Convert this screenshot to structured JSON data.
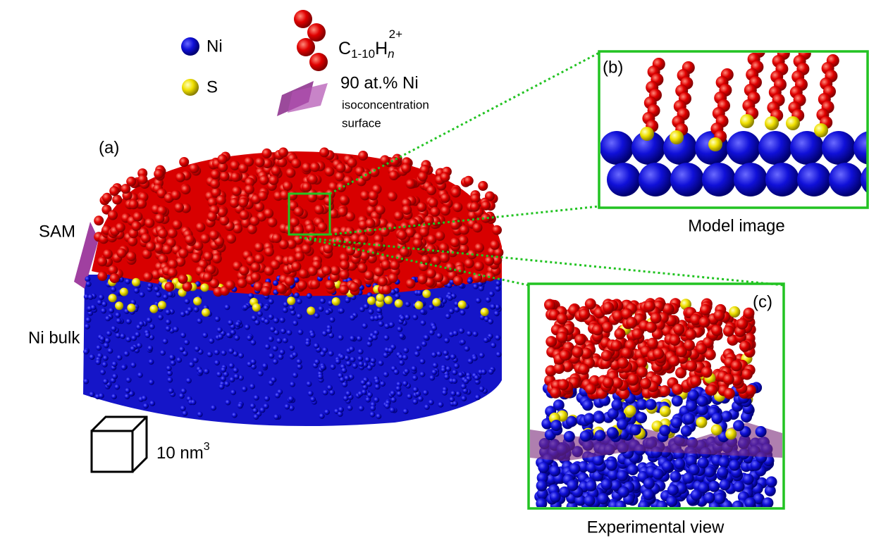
{
  "legend": {
    "ni": "Ni",
    "s": "S",
    "formula": {
      "base": "C",
      "sub": "1-10",
      "mid": "H",
      "sub2": "n",
      "sup": "2+"
    },
    "iso": {
      "title": "90 at.% Ni",
      "line1": "isoconcentration",
      "line2": "surface"
    }
  },
  "panel_a": {
    "label": "(a)",
    "sam": "SAM",
    "bulk": "Ni bulk",
    "scale": {
      "text": "10 nm",
      "sup": "3"
    }
  },
  "panel_b": {
    "label": "(b)",
    "caption": "Model image"
  },
  "panel_c": {
    "label": "(c)",
    "caption": "Experimental view"
  }
}
